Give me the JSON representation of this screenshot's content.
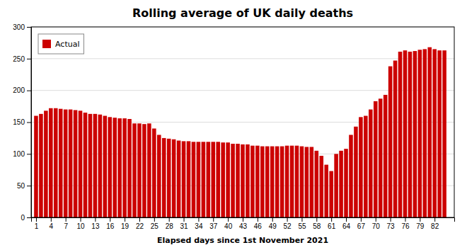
{
  "chart_data": {
    "type": "bar",
    "title": "Rolling average of UK daily deaths",
    "xlabel": "Elapsed days since 1st November 2021",
    "x": [
      1,
      2,
      3,
      4,
      5,
      6,
      7,
      8,
      9,
      10,
      11,
      12,
      13,
      14,
      15,
      16,
      17,
      18,
      19,
      20,
      21,
      22,
      23,
      24,
      25,
      26,
      27,
      28,
      29,
      30,
      31,
      32,
      33,
      34,
      35,
      36,
      37,
      38,
      39,
      40,
      41,
      42,
      43,
      44,
      45,
      46,
      47,
      48,
      49,
      50,
      51,
      52,
      53,
      54,
      55,
      56,
      57,
      58,
      59,
      60,
      61,
      62,
      63,
      64,
      65,
      66,
      67,
      68,
      69,
      70,
      71,
      72,
      73,
      74,
      75,
      76,
      77,
      78,
      79,
      80,
      81,
      82,
      83,
      84
    ],
    "series": [
      {
        "name": "Actual",
        "color": "#cc0000",
        "values": [
          160,
          163,
          168,
          172,
          172,
          171,
          170,
          170,
          169,
          168,
          165,
          163,
          163,
          162,
          160,
          158,
          157,
          156,
          156,
          155,
          148,
          148,
          147,
          148,
          140,
          130,
          125,
          124,
          123,
          121,
          120,
          120,
          119,
          119,
          119,
          119,
          119,
          119,
          118,
          118,
          116,
          116,
          115,
          115,
          113,
          113,
          112,
          112,
          112,
          112,
          112,
          113,
          113,
          113,
          112,
          111,
          111,
          105,
          97,
          83,
          73,
          100,
          105,
          108,
          130,
          143,
          158,
          160,
          170,
          183,
          187,
          193,
          238,
          247,
          261,
          263,
          261,
          262,
          264,
          265,
          268,
          265,
          263,
          263
        ]
      }
    ],
    "xlim": [
      0,
      86
    ],
    "xticks": [
      1,
      4,
      7,
      10,
      13,
      16,
      19,
      22,
      25,
      28,
      31,
      34,
      37,
      40,
      43,
      46,
      49,
      52,
      55,
      58,
      61,
      64,
      67,
      70,
      73,
      76,
      79,
      82
    ],
    "ylim": [
      0,
      300
    ],
    "yticks": [
      0,
      50,
      100,
      150,
      200,
      250,
      300
    ],
    "grid": true,
    "legend": "upper left"
  }
}
